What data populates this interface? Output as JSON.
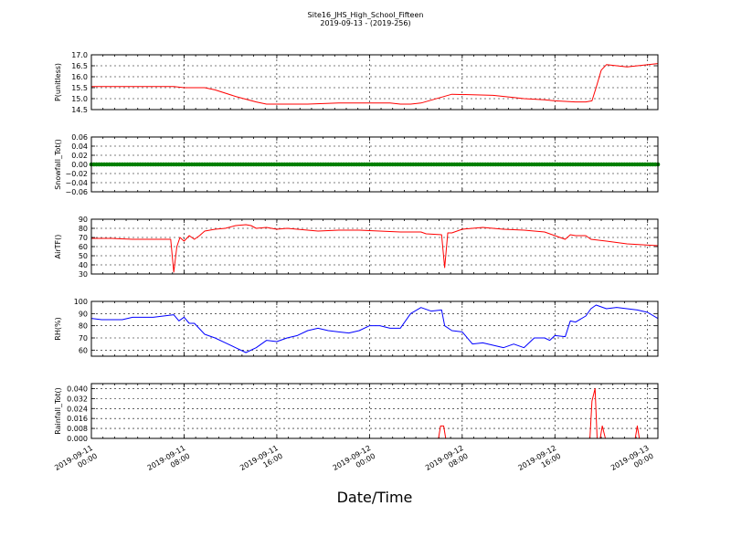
{
  "figure": {
    "title_line1": "Site16_JHS_High_School_Fifteen",
    "title_line2": "2019-09-13 - (2019-256)",
    "xlabel": "Date/Time"
  },
  "chart_data": [
    {
      "type": "line",
      "ylabel": "P(unitless)",
      "color": "#ff0000",
      "ylim": [
        14.5,
        17.0
      ],
      "yticks": [
        14.5,
        15.0,
        15.5,
        16.0,
        16.5,
        17.0
      ],
      "ytick_labels": [
        "14.5",
        "15.0",
        "15.5",
        "16.0",
        "16.5",
        "17.0"
      ],
      "x_hours": [
        0,
        4,
        8,
        9,
        11,
        12,
        14,
        16,
        17,
        19,
        21,
        24,
        27,
        29,
        30,
        31,
        32,
        35,
        39,
        41,
        42,
        44,
        45,
        47,
        48,
        48.6,
        49,
        49.5,
        50,
        52,
        55
      ],
      "values": [
        15.55,
        15.55,
        15.55,
        15.5,
        15.5,
        15.4,
        15.1,
        14.85,
        14.75,
        14.75,
        14.75,
        14.8,
        14.8,
        14.8,
        14.75,
        14.75,
        14.8,
        15.2,
        15.15,
        15.05,
        15.0,
        14.95,
        14.9,
        14.85,
        14.85,
        14.9,
        15.5,
        16.3,
        16.55,
        16.45,
        16.6
      ]
    },
    {
      "type": "scatter",
      "ylabel": "Snowfall_Tot()",
      "color": "#008000",
      "ylim": [
        -0.06,
        0.06
      ],
      "yticks": [
        -0.06,
        -0.04,
        -0.02,
        0.0,
        0.02,
        0.04,
        0.06
      ],
      "ytick_labels": [
        "−0.06",
        "−0.04",
        "−0.02",
        "0.00",
        "0.02",
        "0.04",
        "0.06"
      ],
      "x_hours": [
        0,
        55
      ],
      "values": [
        0.0,
        0.0
      ],
      "sampling_minutes": 15
    },
    {
      "type": "line",
      "ylabel": "AirTF()",
      "color": "#ff0000",
      "ylim": [
        30,
        90
      ],
      "yticks": [
        30,
        40,
        50,
        60,
        70,
        80,
        90
      ],
      "ytick_labels": [
        "30",
        "40",
        "50",
        "60",
        "70",
        "80",
        "90"
      ],
      "x_hours": [
        0,
        2,
        4,
        6,
        7.7,
        8,
        8.3,
        8.6,
        9,
        9.5,
        10,
        10.5,
        11,
        12,
        13,
        14,
        15,
        15.5,
        16,
        17,
        18,
        19,
        20,
        22,
        24,
        26,
        28,
        30,
        32,
        32.5,
        34,
        34.3,
        34.6,
        35,
        36,
        37,
        38,
        39,
        40,
        42,
        44,
        46,
        46.5,
        47,
        48,
        48.5,
        50,
        52,
        55
      ],
      "values": [
        69,
        69,
        68,
        68,
        68,
        32,
        60,
        70,
        66,
        72,
        68,
        72,
        77,
        79,
        80,
        83,
        84,
        83,
        80,
        81,
        79,
        80,
        79,
        77,
        78,
        78,
        77,
        76,
        76,
        74,
        73,
        37,
        75,
        75,
        79,
        80,
        81,
        80,
        79,
        78,
        76,
        68,
        73,
        72,
        72,
        68,
        66,
        63,
        61
      ]
    },
    {
      "type": "line",
      "ylabel": "RH(%)",
      "color": "#0000ff",
      "ylim": [
        55,
        100
      ],
      "yticks": [
        60,
        70,
        80,
        90,
        100
      ],
      "ytick_labels": [
        "60",
        "70",
        "80",
        "90",
        "100"
      ],
      "x_hours": [
        0,
        1,
        3,
        4,
        6,
        7,
        8,
        8.5,
        9,
        9.5,
        10,
        11,
        12,
        13,
        14,
        15,
        16,
        17,
        18,
        19,
        20,
        21,
        22,
        23,
        24,
        25,
        26,
        27,
        28,
        29,
        30,
        31,
        32,
        33,
        34,
        34.3,
        35,
        36,
        37,
        38,
        39,
        40,
        41,
        42,
        43,
        44,
        44.5,
        45,
        46,
        46.5,
        47,
        48,
        48.5,
        49,
        50,
        51,
        52,
        53,
        54,
        55
      ],
      "values": [
        86,
        85,
        85,
        87,
        87,
        88,
        89,
        84,
        87,
        82,
        82,
        73,
        70,
        66,
        62,
        58,
        62,
        68,
        67,
        70,
        72,
        76,
        78,
        76,
        75,
        74,
        76,
        80,
        80,
        78,
        78,
        90,
        95,
        92,
        93,
        80,
        76,
        75,
        65,
        66,
        64,
        62,
        65,
        62,
        70,
        70,
        68,
        72,
        71,
        84,
        83,
        88,
        94,
        97,
        94,
        95,
        94,
        93,
        91,
        86
      ]
    },
    {
      "type": "line",
      "ylabel": "Rainfall_Tot()",
      "color": "#ff0000",
      "ylim": [
        0.0,
        0.044
      ],
      "yticks": [
        0.0,
        0.008,
        0.016,
        0.024,
        0.032,
        0.04
      ],
      "ytick_labels": [
        "0.000",
        "0.008",
        "0.016",
        "0.024",
        "0.032",
        "0.040"
      ],
      "x_hours": [
        0,
        33.7,
        33.9,
        34.2,
        34.4,
        48.4,
        48.6,
        48.9,
        49.1,
        49.4,
        49.6,
        49.9,
        50.1,
        52.8,
        53,
        53.2,
        55
      ],
      "values": [
        0,
        0,
        0.01,
        0.01,
        0,
        0,
        0.03,
        0.04,
        0,
        0,
        0.01,
        0,
        0,
        0,
        0.01,
        0,
        0
      ]
    }
  ],
  "x_axis": {
    "range_hours": [
      0,
      55
    ],
    "ticks": [
      {
        "hours": 0,
        "line1": "2019-09-11",
        "line2": "00:00"
      },
      {
        "hours": 9,
        "line1": "2019-09-11",
        "line2": "08:00"
      },
      {
        "hours": 18,
        "line1": "2019-09-11",
        "line2": "16:00"
      },
      {
        "hours": 27,
        "line1": "2019-09-12",
        "line2": "00:00"
      },
      {
        "hours": 36,
        "line1": "2019-09-12",
        "line2": "08:00"
      },
      {
        "hours": 45,
        "line1": "2019-09-12",
        "line2": "16:00"
      },
      {
        "hours": 54,
        "line1": "2019-09-13",
        "line2": "00:00"
      }
    ]
  }
}
